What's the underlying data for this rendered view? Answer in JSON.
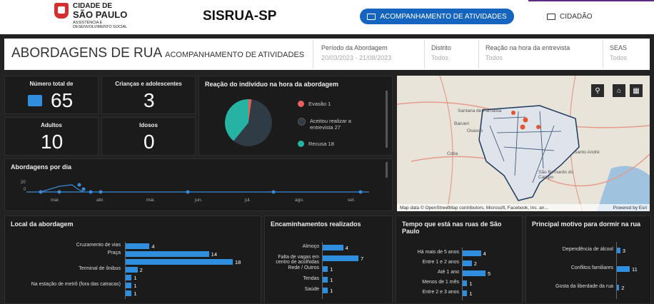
{
  "brand": {
    "line1": "CIDADE DE",
    "line2": "SÃO PAULO",
    "line3": "ASSISTÊNCIA E DESENVOLVIMENTO SOCIAL"
  },
  "app_title": "SISRUA-SP",
  "nav": {
    "acompanhamento": "ACOMPANHAMENTO DE ATIVIDADES",
    "cidadao": "CIDADÃO"
  },
  "header": {
    "title": "ABORDAGENS DE RUA",
    "subtitle": "ACOMPANHAMENTO DE ATIVIDADES",
    "filters": [
      {
        "label": "Período da Abordagem",
        "value": "20/03/2023 - 21/08/2023"
      },
      {
        "label": "Distrito",
        "value": "Todos"
      },
      {
        "label": "Reação na hora da entrevista",
        "value": "Todos"
      },
      {
        "label": "SEAS",
        "value": "Todos"
      }
    ]
  },
  "kpis": {
    "total": {
      "label": "Número total de",
      "value": "65"
    },
    "criancas": {
      "label": "Crianças e adolescentes",
      "value": "3"
    },
    "adultos": {
      "label": "Adultos",
      "value": "10"
    },
    "idosos": {
      "label": "Idosos",
      "value": "0"
    }
  },
  "reacao": {
    "title": "Reação do indivíduo na hora da abordagem",
    "items": [
      {
        "label": "Evasão",
        "value": "1",
        "color": "#e8625a"
      },
      {
        "label": "Aceitou realizar a entrevista",
        "value": "27",
        "color": "#2f3b45"
      },
      {
        "label": "Recusa",
        "value": "18",
        "color": "#27b3a4"
      }
    ]
  },
  "abordagens_dia": {
    "title": "Abordagens por dia",
    "ytick": [
      "20",
      "0"
    ],
    "months": [
      "mar.",
      "abr.",
      "mai.",
      "jun.",
      "jul.",
      "ago.",
      "set."
    ]
  },
  "local": {
    "title": "Local da abordagem",
    "items": [
      {
        "label": "Cruzamento de vias",
        "value": 4
      },
      {
        "label": "Praça",
        "value": 14
      },
      {
        "label": "",
        "value": 18
      },
      {
        "label": "Terminal de ônibus",
        "value": 2
      },
      {
        "label": "",
        "value": 1
      },
      {
        "label": "Na estação de metrô (fora das catracas)",
        "value": 1
      },
      {
        "label": "",
        "value": 1
      }
    ]
  },
  "encaminhamentos": {
    "title": "Encaminhamentos realizados",
    "items": [
      {
        "label": "Almoço",
        "value": 4
      },
      {
        "label": "Falta de vagas em centro de acolhidas",
        "value": 7
      },
      {
        "label": "Rede / Outros",
        "value": 1
      },
      {
        "label": "Tendas",
        "value": 1
      },
      {
        "label": "Saúde",
        "value": 1
      }
    ]
  },
  "tempo": {
    "title": "Tempo que está nas ruas de São Paulo",
    "items": [
      {
        "label": "Há mais de 5 anos",
        "value": 4
      },
      {
        "label": "Entre 1 e 2 anos",
        "value": 2
      },
      {
        "label": "Até 1 ano",
        "value": 5
      },
      {
        "label": "Menos de 1 mês",
        "value": 1
      },
      {
        "label": "Entre 2 e 3 anos",
        "value": 1
      }
    ]
  },
  "motivo": {
    "title": "Principal motivo para dormir na rua",
    "items": [
      {
        "label": "Dependência de álcool",
        "value": 3
      },
      {
        "label": "Conflitos familiares",
        "value": 11
      },
      {
        "label": "Gosta da liberdade da rua",
        "value": 2
      }
    ]
  },
  "map": {
    "attribution": "Map data © OpenStreetMap contributors, Microsoft, Facebook, Inc. an…",
    "powered": "Powered by Esri",
    "places": [
      "Santana de Parnaíba",
      "Barueri",
      "Osasco",
      "Cotia",
      "São Bernardo do Campo",
      "Santo André"
    ]
  },
  "colors": {
    "accent": "#1565c0",
    "bar": "#2f8fde",
    "bg": "#222222"
  }
}
